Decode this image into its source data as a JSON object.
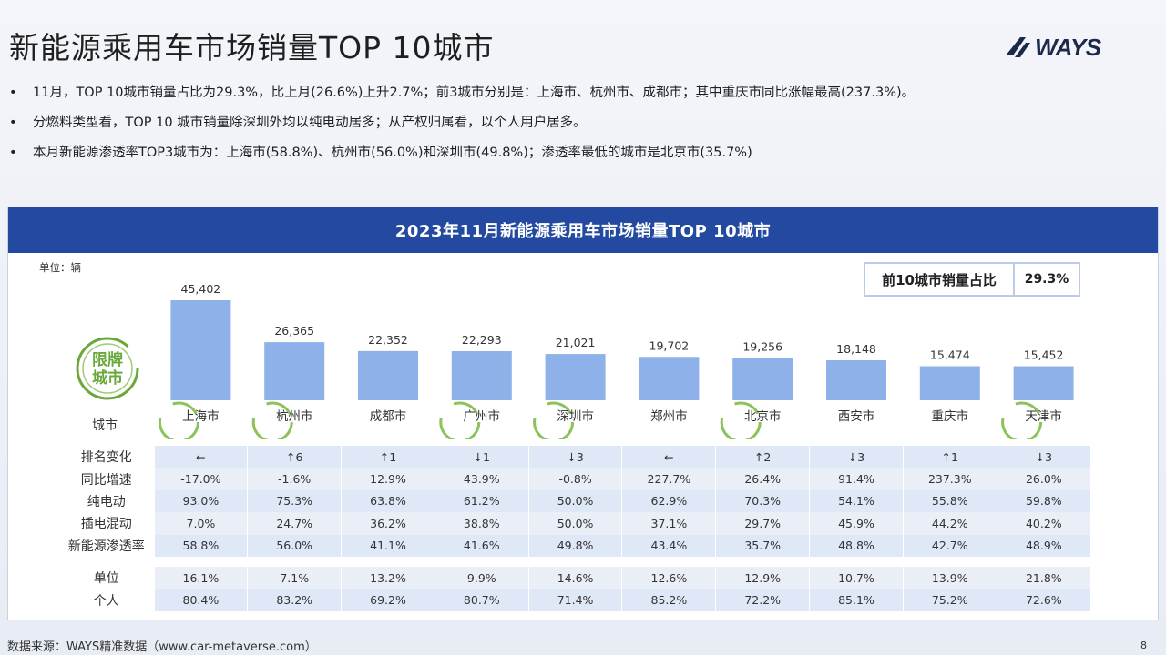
{
  "page": {
    "title": "新能源乘用车市场销量TOP 10城市",
    "logo_text": "WAYS",
    "page_number": "8",
    "footer": "数据来源：WAYS精准数据（www.car-metaverse.com）"
  },
  "bullets": [
    "11月，TOP 10城市销量占比为29.3%，比上月(26.6%)上升2.7%；前3城市分别是：上海市、杭州市、成都市；其中重庆市同比涨幅最高(237.3%)。",
    "分燃料类型看，TOP 10 城市销量除深圳外均以纯电动居多；从产权归属看，以个人用户居多。",
    "本月新能源渗透率TOP3城市为：上海市(58.8%)、杭州市(56.0%)和深圳市(49.8%)；渗透率最低的城市是北京市(35.7%)"
  ],
  "panel": {
    "header": "2023年11月新能源乘用车市场销量TOP 10城市",
    "unit": "单位：辆",
    "share_label": "前10城市销量占比",
    "share_value": "29.3%",
    "badge_line1": "限牌",
    "badge_line2": "城市",
    "city_row_label": "城市"
  },
  "colors": {
    "bar": "#8eb1ea",
    "header": "#234aa0",
    "badge": "#6aa83c"
  },
  "chart_data": {
    "type": "bar",
    "categories": [
      "上海市",
      "杭州市",
      "成都市",
      "广州市",
      "深圳市",
      "郑州市",
      "北京市",
      "西安市",
      "重庆市",
      "天津市"
    ],
    "values": [
      45402,
      26365,
      22352,
      22293,
      21021,
      19702,
      19256,
      18148,
      15474,
      15452
    ],
    "value_labels": [
      "45,402",
      "26,365",
      "22,352",
      "22,293",
      "21,021",
      "19,702",
      "19,256",
      "18,148",
      "15,474",
      "15,452"
    ],
    "restricted_cities": [
      "上海市",
      "杭州市",
      "广州市",
      "深圳市",
      "北京市",
      "天津市"
    ],
    "ylim": [
      0,
      47000
    ]
  },
  "table": {
    "rows": [
      {
        "label": "排名变化",
        "values": [
          "←",
          "↑6",
          "↑1",
          "↓1",
          "↓3",
          "←",
          "↑2",
          "↓3",
          "↑1",
          "↓3"
        ]
      },
      {
        "label": "同比增速",
        "values": [
          "-17.0%",
          "-1.6%",
          "12.9%",
          "43.9%",
          "-0.8%",
          "227.7%",
          "26.4%",
          "91.4%",
          "237.3%",
          "26.0%"
        ]
      },
      {
        "label": "纯电动",
        "values": [
          "93.0%",
          "75.3%",
          "63.8%",
          "61.2%",
          "50.0%",
          "62.9%",
          "70.3%",
          "54.1%",
          "55.8%",
          "59.8%"
        ]
      },
      {
        "label": "插电混动",
        "values": [
          "7.0%",
          "24.7%",
          "36.2%",
          "38.8%",
          "50.0%",
          "37.1%",
          "29.7%",
          "45.9%",
          "44.2%",
          "40.2%"
        ]
      },
      {
        "label": "新能源渗透率",
        "values": [
          "58.8%",
          "56.0%",
          "41.1%",
          "41.6%",
          "49.8%",
          "43.4%",
          "35.7%",
          "48.8%",
          "42.7%",
          "48.9%"
        ]
      },
      {
        "label": "单位",
        "values": [
          "16.1%",
          "7.1%",
          "13.2%",
          "9.9%",
          "14.6%",
          "12.6%",
          "12.9%",
          "10.7%",
          "13.9%",
          "21.8%"
        ]
      },
      {
        "label": "个人",
        "values": [
          "80.4%",
          "83.2%",
          "69.2%",
          "80.7%",
          "71.4%",
          "85.2%",
          "72.2%",
          "85.1%",
          "75.2%",
          "72.6%"
        ]
      }
    ]
  }
}
